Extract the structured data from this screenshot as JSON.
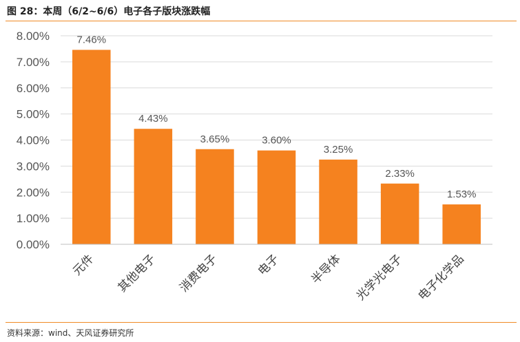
{
  "figure": {
    "title": "图 28：本周（6/2~6/6）电子各子版块涨跌幅",
    "source": "资料来源：wind、天风证券研究所"
  },
  "colors": {
    "bar": "#f5821f",
    "accent_rule": "#f08a24",
    "grid": "#d9d9d9",
    "axis": "#bfbfbf"
  },
  "chart_data": {
    "type": "bar",
    "categories": [
      "元件",
      "其他电子",
      "消费电子",
      "电子",
      "半导体",
      "光学光电子",
      "电子化学品"
    ],
    "values": [
      7.46,
      4.43,
      3.65,
      3.6,
      3.25,
      2.33,
      1.53
    ],
    "data_labels": [
      "7.46%",
      "4.43%",
      "3.65%",
      "3.60%",
      "3.25%",
      "2.33%",
      "1.53%"
    ],
    "yticks": [
      "0.00%",
      "1.00%",
      "2.00%",
      "3.00%",
      "4.00%",
      "5.00%",
      "6.00%",
      "7.00%",
      "8.00%"
    ],
    "ylim": [
      0,
      8
    ],
    "grid": true,
    "legend": "none",
    "title": "",
    "xlabel": "",
    "ylabel": ""
  }
}
